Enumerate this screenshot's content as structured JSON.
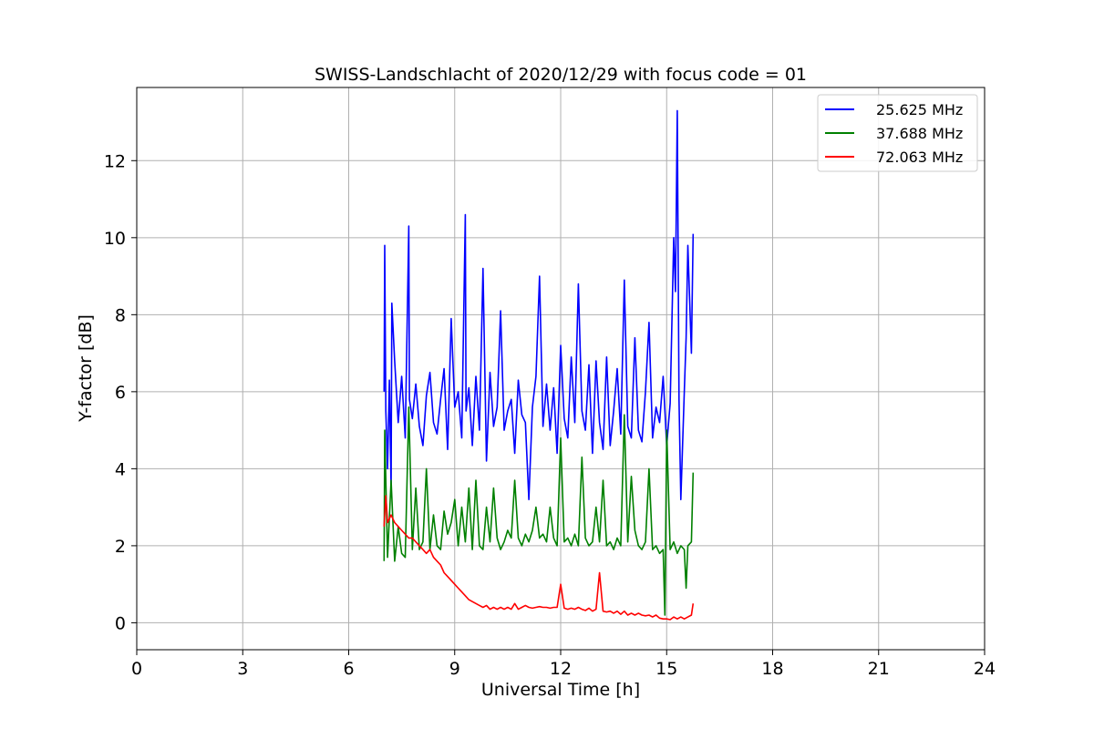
{
  "chart_data": {
    "type": "line",
    "title": "SWISS-Landschlacht of 2020/12/29 with focus code = 01",
    "xlabel": "Universal Time [h]",
    "ylabel": "Y-factor [dB]",
    "xlim": [
      0,
      24
    ],
    "ylim": [
      -0.7,
      13.9
    ],
    "xticks": [
      "0",
      "3",
      "6",
      "9",
      "12",
      "15",
      "18",
      "21",
      "24"
    ],
    "yticks": [
      "0",
      "2",
      "4",
      "6",
      "8",
      "10",
      "12"
    ],
    "grid": true,
    "legend_position": "top-right",
    "series": [
      {
        "name": "25.625 MHz",
        "color": "#0000ff",
        "x": [
          7.0,
          7.02,
          7.05,
          7.1,
          7.15,
          7.2,
          7.22,
          7.3,
          7.4,
          7.5,
          7.6,
          7.7,
          7.72,
          7.8,
          7.9,
          8.0,
          8.1,
          8.2,
          8.3,
          8.4,
          8.5,
          8.6,
          8.7,
          8.8,
          8.9,
          9.0,
          9.1,
          9.2,
          9.3,
          9.32,
          9.4,
          9.5,
          9.6,
          9.7,
          9.8,
          9.9,
          10.0,
          10.1,
          10.2,
          10.3,
          10.4,
          10.5,
          10.6,
          10.7,
          10.8,
          10.9,
          11.0,
          11.1,
          11.2,
          11.3,
          11.4,
          11.5,
          11.6,
          11.7,
          11.8,
          11.9,
          12.0,
          12.1,
          12.2,
          12.3,
          12.4,
          12.5,
          12.6,
          12.7,
          12.8,
          12.9,
          13.0,
          13.1,
          13.2,
          13.3,
          13.4,
          13.5,
          13.6,
          13.7,
          13.8,
          13.9,
          14.0,
          14.1,
          14.2,
          14.3,
          14.4,
          14.5,
          14.6,
          14.7,
          14.8,
          14.9,
          15.0,
          15.1,
          15.2,
          15.25,
          15.3,
          15.35,
          15.4,
          15.5,
          15.55,
          15.6,
          15.7,
          15.75
        ],
        "values": [
          6.0,
          9.8,
          5.5,
          4.0,
          6.3,
          3.5,
          8.3,
          6.8,
          5.2,
          6.4,
          4.8,
          10.3,
          5.8,
          5.3,
          6.2,
          5.1,
          4.6,
          5.9,
          6.5,
          5.2,
          4.9,
          5.8,
          6.6,
          4.5,
          7.9,
          5.6,
          6.0,
          4.8,
          10.6,
          5.5,
          6.1,
          4.6,
          6.4,
          5.0,
          9.2,
          4.2,
          6.5,
          5.1,
          5.6,
          8.1,
          5.0,
          5.5,
          5.8,
          4.4,
          6.3,
          5.4,
          5.2,
          3.2,
          5.6,
          6.4,
          9.0,
          5.1,
          6.2,
          5.0,
          6.1,
          4.4,
          7.2,
          5.3,
          4.8,
          6.9,
          5.2,
          8.8,
          5.5,
          5.0,
          6.7,
          4.4,
          6.8,
          5.2,
          4.5,
          6.9,
          4.6,
          5.5,
          6.6,
          4.9,
          8.9,
          5.1,
          4.8,
          7.4,
          5.0,
          4.7,
          6.0,
          7.8,
          4.8,
          5.6,
          5.2,
          6.4,
          4.6,
          5.7,
          10.0,
          8.6,
          13.3,
          5.8,
          3.2,
          6.0,
          7.4,
          9.8,
          7.0,
          10.1
        ]
      },
      {
        "name": "37.688 MHz",
        "color": "#008000",
        "x": [
          7.0,
          7.02,
          7.1,
          7.2,
          7.3,
          7.4,
          7.5,
          7.6,
          7.7,
          7.8,
          7.9,
          8.0,
          8.1,
          8.2,
          8.3,
          8.4,
          8.5,
          8.6,
          8.7,
          8.8,
          8.9,
          9.0,
          9.1,
          9.2,
          9.3,
          9.4,
          9.5,
          9.6,
          9.7,
          9.8,
          9.9,
          10.0,
          10.1,
          10.2,
          10.3,
          10.4,
          10.5,
          10.6,
          10.7,
          10.8,
          10.9,
          11.0,
          11.1,
          11.2,
          11.3,
          11.4,
          11.5,
          11.6,
          11.7,
          11.8,
          11.9,
          12.0,
          12.1,
          12.2,
          12.3,
          12.4,
          12.5,
          12.6,
          12.7,
          12.8,
          12.9,
          13.0,
          13.1,
          13.2,
          13.3,
          13.4,
          13.5,
          13.6,
          13.7,
          13.8,
          13.9,
          14.0,
          14.1,
          14.2,
          14.3,
          14.4,
          14.5,
          14.6,
          14.7,
          14.8,
          14.9,
          14.95,
          15.0,
          15.1,
          15.2,
          15.3,
          15.4,
          15.5,
          15.55,
          15.6,
          15.7,
          15.75
        ],
        "values": [
          1.6,
          5.0,
          1.7,
          3.7,
          1.6,
          2.5,
          1.8,
          1.7,
          5.6,
          1.9,
          3.5,
          1.9,
          2.1,
          4.0,
          1.9,
          2.8,
          2.0,
          1.9,
          2.9,
          2.3,
          2.6,
          3.2,
          2.0,
          3.0,
          2.1,
          3.5,
          1.9,
          3.7,
          2.0,
          1.9,
          3.0,
          2.1,
          3.5,
          2.2,
          1.9,
          2.1,
          2.4,
          2.2,
          3.7,
          2.2,
          2.0,
          2.3,
          2.1,
          2.4,
          3.0,
          2.2,
          2.3,
          2.1,
          3.0,
          2.2,
          2.0,
          4.8,
          2.1,
          2.2,
          2.0,
          2.3,
          2.0,
          4.3,
          2.2,
          2.0,
          2.1,
          3.0,
          2.1,
          3.7,
          2.0,
          2.1,
          1.9,
          2.2,
          2.0,
          5.4,
          2.1,
          3.8,
          2.4,
          2.0,
          1.9,
          2.1,
          4.0,
          1.9,
          2.0,
          1.8,
          1.9,
          0.2,
          5.0,
          1.9,
          2.1,
          1.8,
          2.0,
          1.9,
          0.9,
          2.0,
          2.1,
          3.9
        ]
      },
      {
        "name": "72.063 MHz",
        "color": "#ff0000",
        "x": [
          7.0,
          7.05,
          7.1,
          7.2,
          7.3,
          7.4,
          7.5,
          7.6,
          7.7,
          7.8,
          7.9,
          8.0,
          8.1,
          8.2,
          8.3,
          8.4,
          8.5,
          8.6,
          8.7,
          8.8,
          8.9,
          9.0,
          9.1,
          9.2,
          9.3,
          9.4,
          9.5,
          9.6,
          9.7,
          9.8,
          9.9,
          10.0,
          10.1,
          10.2,
          10.3,
          10.4,
          10.5,
          10.6,
          10.7,
          10.8,
          10.9,
          11.0,
          11.1,
          11.2,
          11.3,
          11.4,
          11.5,
          11.6,
          11.7,
          11.8,
          11.9,
          12.0,
          12.1,
          12.2,
          12.3,
          12.4,
          12.5,
          12.6,
          12.7,
          12.8,
          12.9,
          13.0,
          13.1,
          13.2,
          13.3,
          13.4,
          13.5,
          13.6,
          13.7,
          13.8,
          13.9,
          14.0,
          14.1,
          14.2,
          14.3,
          14.4,
          14.5,
          14.6,
          14.7,
          14.8,
          14.9,
          15.0,
          15.1,
          15.2,
          15.3,
          15.4,
          15.5,
          15.6,
          15.7,
          15.75
        ],
        "values": [
          2.5,
          3.3,
          2.6,
          2.8,
          2.6,
          2.5,
          2.4,
          2.3,
          2.2,
          2.2,
          2.1,
          2.0,
          1.9,
          1.8,
          1.9,
          1.7,
          1.6,
          1.5,
          1.3,
          1.2,
          1.1,
          1.0,
          0.9,
          0.8,
          0.7,
          0.6,
          0.55,
          0.5,
          0.45,
          0.4,
          0.45,
          0.35,
          0.4,
          0.35,
          0.4,
          0.35,
          0.4,
          0.35,
          0.5,
          0.35,
          0.4,
          0.45,
          0.4,
          0.38,
          0.4,
          0.42,
          0.4,
          0.4,
          0.38,
          0.4,
          0.4,
          1.0,
          0.38,
          0.35,
          0.38,
          0.35,
          0.4,
          0.35,
          0.32,
          0.38,
          0.3,
          0.35,
          1.3,
          0.3,
          0.28,
          0.3,
          0.25,
          0.3,
          0.22,
          0.3,
          0.2,
          0.25,
          0.2,
          0.25,
          0.2,
          0.18,
          0.2,
          0.15,
          0.2,
          0.12,
          0.1,
          0.1,
          0.08,
          0.15,
          0.1,
          0.15,
          0.1,
          0.15,
          0.2,
          0.5
        ]
      }
    ]
  }
}
